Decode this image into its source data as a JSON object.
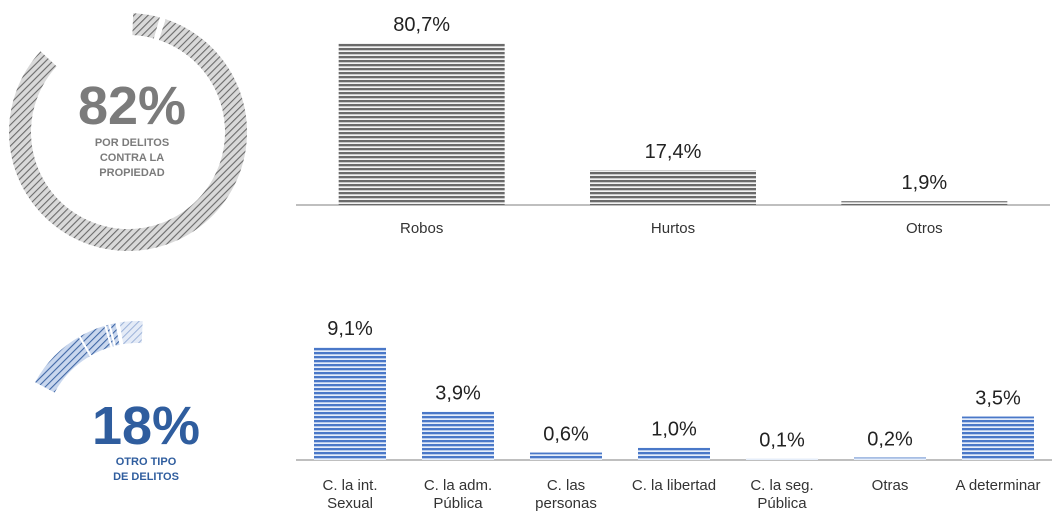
{
  "donuts": [
    {
      "value": 82,
      "percent_label": "82%",
      "caption_lines": [
        "POR DELITOS",
        "CONTRA LA",
        "PROPIEDAD"
      ],
      "color": "#7a7a7a",
      "text_color": "#7b7b7b"
    },
    {
      "value": 18,
      "percent_label": "18%",
      "caption_lines": [
        "OTRO TIPO",
        "DE DELITOS"
      ],
      "segments": [
        9.1,
        3.9,
        0.6,
        1.0,
        0.1,
        0.2,
        3.5
      ],
      "color": "#4a6fa8",
      "text_color": "#2f5d9e"
    }
  ],
  "chart_data": [
    {
      "type": "bar",
      "categories": [
        "Robos",
        "Hurtos",
        "Otros"
      ],
      "values": [
        80.7,
        17.4,
        1.9
      ],
      "data_labels": [
        "80,7%",
        "17,4%",
        "1,9%"
      ],
      "color": "#6f6f6f",
      "grid": false
    },
    {
      "type": "bar",
      "categories": [
        "C. la int. Sexual",
        "C. la adm. Pública",
        "C. las personas",
        "C. la libertad",
        "C. la seg. Pública",
        "Otras",
        "A determinar"
      ],
      "category_lines": [
        [
          "C. la int.",
          "Sexual"
        ],
        [
          "C. la adm.",
          "Pública"
        ],
        [
          "C. las",
          "personas"
        ],
        [
          "C. la libertad"
        ],
        [
          "C. la seg.",
          "Pública"
        ],
        [
          "Otras"
        ],
        [
          "A determinar"
        ]
      ],
      "values": [
        9.1,
        3.9,
        0.6,
        1.0,
        0.1,
        0.2,
        3.5
      ],
      "data_labels": [
        "9,1%",
        "3,9%",
        "0,6%",
        "1,0%",
        "0,1%",
        "0,2%",
        "3,5%"
      ],
      "color": "#4a78c8",
      "grid": false
    }
  ]
}
